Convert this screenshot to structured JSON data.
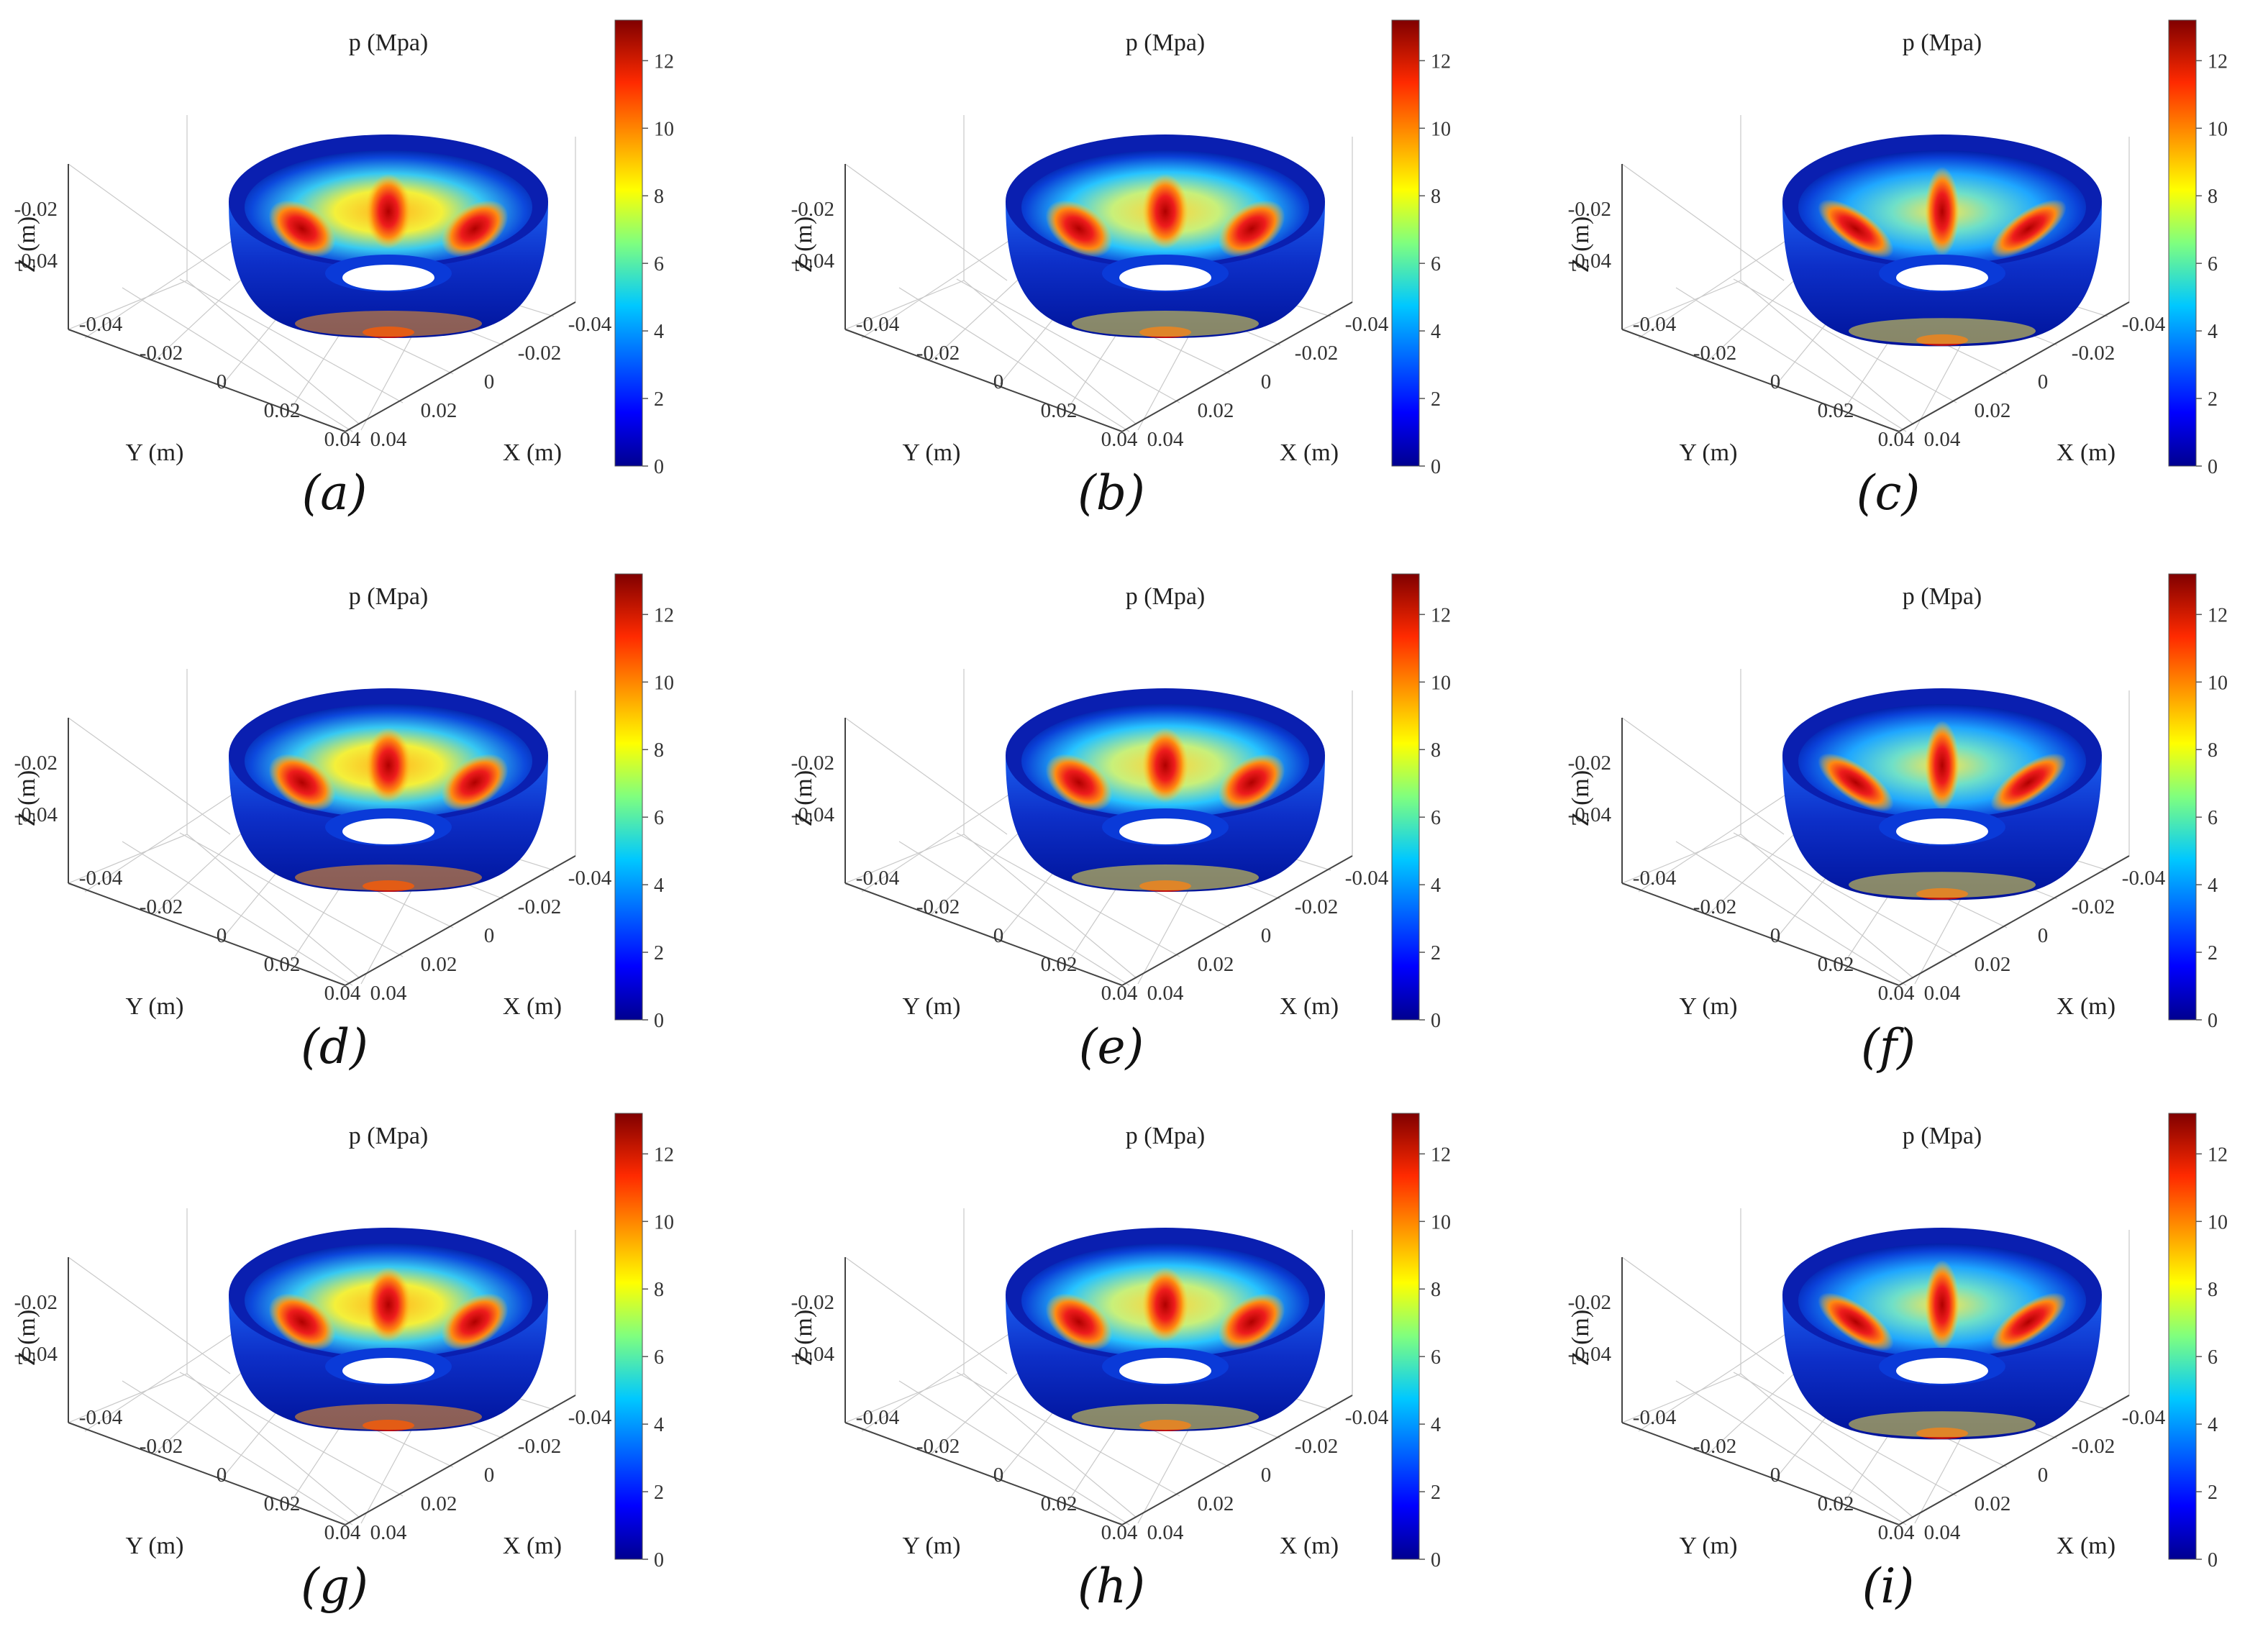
{
  "figure": {
    "panels": [
      {
        "id": "a",
        "label": "(a)",
        "title": "p (Mpa)",
        "style": 0
      },
      {
        "id": "b",
        "label": "(b)",
        "title": "p (Mpa)",
        "style": 1
      },
      {
        "id": "c",
        "label": "(c)",
        "title": "p (Mpa)",
        "style": 2
      },
      {
        "id": "d",
        "label": "(d)",
        "title": "p (Mpa)",
        "style": 0
      },
      {
        "id": "e",
        "label": "(e)",
        "title": "p (Mpa)",
        "style": 1
      },
      {
        "id": "f",
        "label": "(f)",
        "title": "p (Mpa)",
        "style": 2
      },
      {
        "id": "g",
        "label": "(g)",
        "title": "p (Mpa)",
        "style": 0
      },
      {
        "id": "h",
        "label": "(h)",
        "title": "p (Mpa)",
        "style": 1
      },
      {
        "id": "i",
        "label": "(i)",
        "title": "p (Mpa)",
        "style": 2
      }
    ]
  },
  "chart_data": {
    "type": "heatmap",
    "layout": "3x3 grid of 3D surface plots of a bowl-shaped bearing surface",
    "colormap": "jet",
    "axes": {
      "x_label": "X (m)",
      "y_label": "Y (m)",
      "z_label": "Z (m)",
      "x_ticks": [
        "-0.04",
        "-0.02",
        "0",
        "0.02",
        "0.04"
      ],
      "y_ticks": [
        "-0.04",
        "-0.02",
        "0",
        "0.02",
        "0.04"
      ],
      "z_ticks": [
        "-0.02",
        "-0.04"
      ]
    },
    "colorbar": {
      "label": "p (Mpa)",
      "range": [
        0,
        13.2
      ],
      "ticks": [
        "0",
        "2",
        "4",
        "6",
        "8",
        "10",
        "12"
      ]
    },
    "grid": true,
    "features": "five high-pressure pads (about 12-13 MPa) on the inner surface, low-pressure rim and central opening"
  }
}
